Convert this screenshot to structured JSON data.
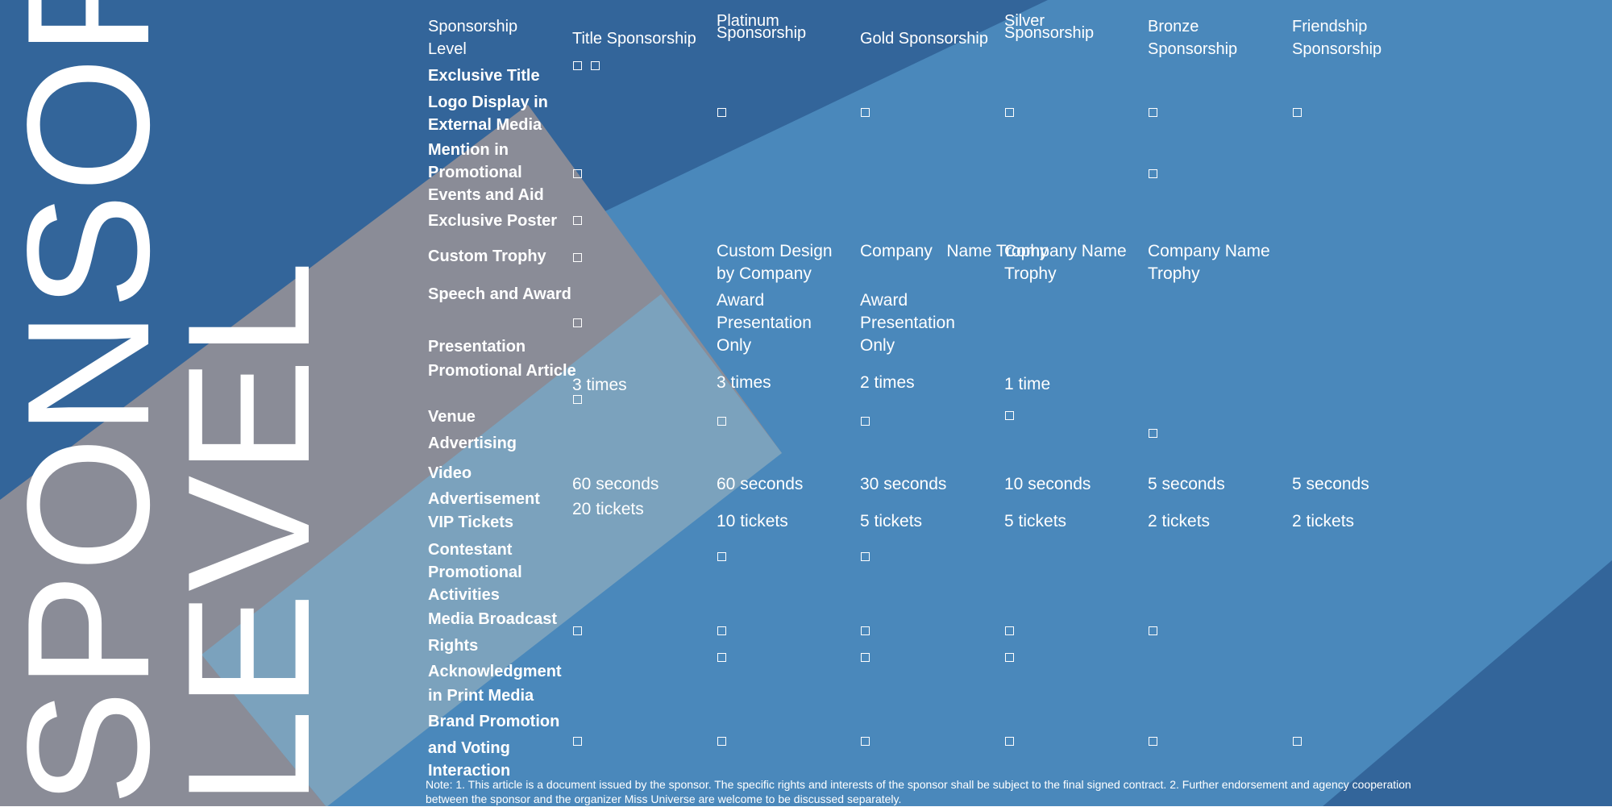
{
  "big_title": {
    "line1": "SPONSOR",
    "line2": "LEVEL"
  },
  "colors": {
    "navy": "#33659a",
    "mid_blue": "#4a88bb",
    "gray": "#8a8c97",
    "light_blue": "#7ba2bd",
    "text": "#ffffff"
  },
  "table": {
    "corner_label": "Sponsorship Level",
    "columns": [
      "Title Sponsorship",
      "Platinum Sponsorship",
      "Gold Sponsorship",
      "Silver Sponsorship",
      "Bronze Sponsorship",
      "Friendship Sponsorship"
    ],
    "rows": [
      {
        "label": "Exclusive Title"
      },
      {
        "label": "Logo Display in External Media"
      },
      {
        "label": "Mention in Promotional Events and Aid"
      },
      {
        "label": "Exclusive Poster"
      },
      {
        "label": "Custom Trophy",
        "values": {
          "platinum": "Custom Design by Company",
          "gold": "Company   Name Trophy",
          "silver": "Company Name Trophy",
          "bronze": "Company Name Trophy"
        }
      },
      {
        "label": "Speech and Award",
        "values": {
          "platinum": "Award Presentation Only",
          "gold": "Award Presentation Only"
        }
      },
      {
        "label": "Presentation"
      },
      {
        "label": "Promotional Article",
        "values": {
          "title": "3 times",
          "platinum": "3 times",
          "gold": "2 times",
          "silver": "1 time"
        }
      },
      {
        "label": "Venue"
      },
      {
        "label": "Advertising"
      },
      {
        "label": "Video Advertisement",
        "values": {
          "title": "60 seconds",
          "platinum": "60 seconds",
          "gold": "30 seconds",
          "silver": "10 seconds",
          "bronze": "5 seconds",
          "friendship": "5 seconds"
        }
      },
      {
        "label": "VIP Tickets",
        "values": {
          "title": "20 tickets",
          "platinum": "10 tickets",
          "gold": "5 tickets",
          "silver": "5 tickets",
          "bronze": "2 tickets",
          "friendship": "2 tickets"
        }
      },
      {
        "label": "Contestant Promotional Activities"
      },
      {
        "label": "Media Broadcast"
      },
      {
        "label": "Rights"
      },
      {
        "label": "Acknowledgment in Print Media"
      },
      {
        "label": "Brand Promotion"
      },
      {
        "label": "and Voting Interaction"
      }
    ]
  },
  "note": "Note: 1. This article is a document issued by the sponsor. The specific rights and interests of the sponsor shall be subject to the final signed contract. 2. Further endorsement and agency cooperation between the sponsor and the organizer Miss Universe are welcome to be discussed separately."
}
